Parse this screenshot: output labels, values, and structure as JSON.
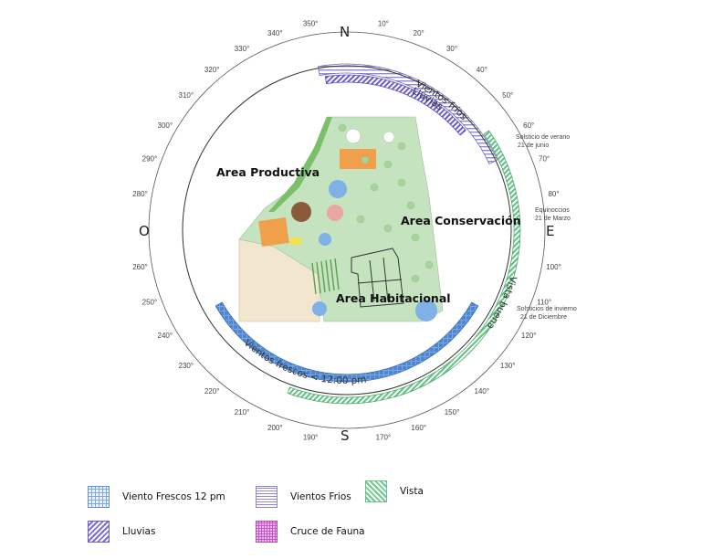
{
  "compass": {
    "cardinals": {
      "north": "N",
      "south": "S",
      "east": "E",
      "west": "O"
    },
    "degree_labels": [
      {
        "angle": 10,
        "text": "10°"
      },
      {
        "angle": 20,
        "text": "20°"
      },
      {
        "angle": 30,
        "text": "30°"
      },
      {
        "angle": 40,
        "text": "40°"
      },
      {
        "angle": 50,
        "text": "50°"
      },
      {
        "angle": 60,
        "text": "60°"
      },
      {
        "angle": 70,
        "text": "70°"
      },
      {
        "angle": 80,
        "text": "80°"
      },
      {
        "angle": 100,
        "text": "100°"
      },
      {
        "angle": 110,
        "text": "110°"
      },
      {
        "angle": 120,
        "text": "120°"
      },
      {
        "angle": 130,
        "text": "130°"
      },
      {
        "angle": 140,
        "text": "140°"
      },
      {
        "angle": 150,
        "text": "150°"
      },
      {
        "angle": 160,
        "text": "160°"
      },
      {
        "angle": 170,
        "text": "170°"
      },
      {
        "angle": 190,
        "text": "190°"
      },
      {
        "angle": 200,
        "text": "200°"
      },
      {
        "angle": 210,
        "text": "210°"
      },
      {
        "angle": 220,
        "text": "220°"
      },
      {
        "angle": 230,
        "text": "230°"
      },
      {
        "angle": 240,
        "text": "240°"
      },
      {
        "angle": 250,
        "text": "250°"
      },
      {
        "angle": 260,
        "text": "260°"
      },
      {
        "angle": 280,
        "text": "280°"
      },
      {
        "angle": 290,
        "text": "290°"
      },
      {
        "angle": 300,
        "text": "300°"
      },
      {
        "angle": 310,
        "text": "310°"
      },
      {
        "angle": 320,
        "text": "320°"
      },
      {
        "angle": 330,
        "text": "330°"
      },
      {
        "angle": 340,
        "text": "340°"
      },
      {
        "angle": 350,
        "text": "350°"
      }
    ]
  },
  "bands": {
    "vientos_frios": {
      "text": "Vientos  fríos",
      "from_deg": 350,
      "to_deg": 65,
      "color": "#8f8bd6"
    },
    "lluvias": {
      "text": "Lluvias",
      "from_deg": 352,
      "to_deg": 50,
      "color": "#6a5bd0"
    },
    "vista": {
      "text": "Vista buena",
      "from_deg": 55,
      "to_deg": 200,
      "color": "#6cc98f"
    },
    "vientos_frescos": {
      "text": "Vientos frescos  < 12:00 pm",
      "from_deg": 120,
      "to_deg": 240,
      "color": "#5b8fd6"
    }
  },
  "sun_notes": {
    "summer": {
      "line1": "Solsticio de verano",
      "line2": "21 de junio"
    },
    "equinox": {
      "line1": "Equinoccios",
      "line2": "21 de Marzo"
    },
    "winter": {
      "line1": "Solsticios de invierno",
      "line2": "21 de Diciembre"
    }
  },
  "areas": {
    "productiva": "Area Productiva",
    "conservacion": "Area Conservación",
    "habitacional": "Area Habitacional"
  },
  "legend": {
    "viento_frescos": "Viento Frescos  12 pm",
    "vientos_frios": "Vientos Frios",
    "vista": "Vista",
    "lluvias": "Lluvias",
    "cruce_fauna": "Cruce de Fauna"
  },
  "colors": {
    "site_green": "#c5e3bf",
    "orange": "#f0a04b",
    "brown": "#8a5a3b",
    "pond_blue": "#7fb0e6",
    "beige": "#f3e6cf"
  }
}
